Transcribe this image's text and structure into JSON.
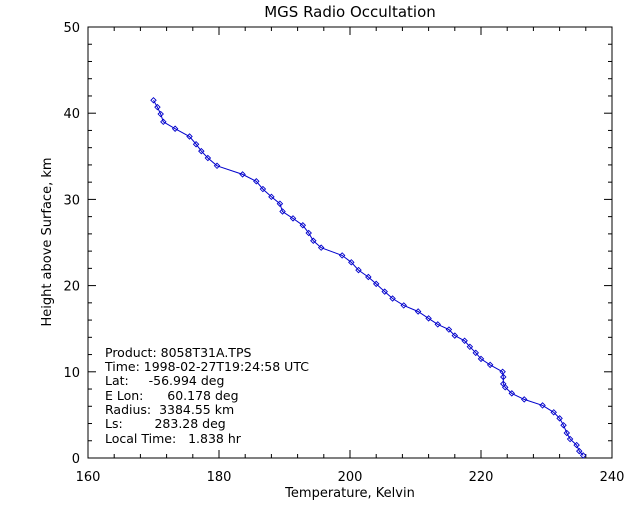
{
  "chart_data": {
    "type": "line",
    "title": "MGS Radio Occultation",
    "xlabel": "Temperature, Kelvin",
    "ylabel": "Height above Surface, km",
    "xlim": [
      160,
      240
    ],
    "ylim": [
      0,
      50
    ],
    "xticks": [
      "160",
      "180",
      "200",
      "220",
      "240"
    ],
    "yticks": [
      "0",
      "10",
      "20",
      "30",
      "40",
      "50"
    ],
    "grid": false,
    "line_color": "#0000cc",
    "marker": "diamond",
    "annotation": {
      "product": "Product: 8058T31A.TPS",
      "time": "Time: 1998-02-27T19:24:58 UTC",
      "lat": "Lat:     -56.994 deg",
      "elon": "E Lon:      60.178 deg",
      "radius": "Radius:  3384.55 km",
      "ls": "Ls:        283.28 deg",
      "local_time": "Local Time:   1.838 hr"
    },
    "points": [
      [
        170.0,
        41.5
      ],
      [
        170.6,
        40.7
      ],
      [
        171.1,
        39.9
      ],
      [
        171.5,
        39.0
      ],
      [
        173.3,
        38.2
      ],
      [
        175.5,
        37.3
      ],
      [
        176.5,
        36.4
      ],
      [
        177.3,
        35.6
      ],
      [
        178.3,
        34.8
      ],
      [
        179.7,
        33.9
      ],
      [
        183.6,
        32.9
      ],
      [
        185.7,
        32.1
      ],
      [
        186.7,
        31.2
      ],
      [
        188.0,
        30.3
      ],
      [
        189.3,
        29.5
      ],
      [
        189.7,
        28.6
      ],
      [
        191.3,
        27.8
      ],
      [
        192.8,
        27.0
      ],
      [
        193.7,
        26.1
      ],
      [
        194.4,
        25.2
      ],
      [
        195.6,
        24.4
      ],
      [
        198.8,
        23.5
      ],
      [
        200.2,
        22.7
      ],
      [
        201.3,
        21.8
      ],
      [
        202.8,
        21.0
      ],
      [
        204.0,
        20.2
      ],
      [
        205.3,
        19.3
      ],
      [
        206.5,
        18.5
      ],
      [
        208.2,
        17.7
      ],
      [
        210.4,
        17.0
      ],
      [
        212.0,
        16.2
      ],
      [
        213.4,
        15.5
      ],
      [
        215.1,
        14.9
      ],
      [
        216.0,
        14.2
      ],
      [
        217.5,
        13.6
      ],
      [
        218.3,
        12.9
      ],
      [
        219.2,
        12.2
      ],
      [
        220.0,
        11.5
      ],
      [
        221.4,
        10.8
      ],
      [
        223.3,
        10.0
      ],
      [
        223.4,
        9.4
      ],
      [
        223.4,
        8.6
      ],
      [
        223.7,
        8.2
      ],
      [
        224.7,
        7.5
      ],
      [
        226.6,
        6.8
      ],
      [
        229.4,
        6.1
      ],
      [
        231.1,
        5.3
      ],
      [
        232.0,
        4.6
      ],
      [
        232.6,
        3.8
      ],
      [
        233.1,
        2.9
      ],
      [
        233.6,
        2.2
      ],
      [
        234.6,
        1.5
      ],
      [
        235.0,
        0.8
      ],
      [
        235.6,
        0.3
      ]
    ]
  }
}
